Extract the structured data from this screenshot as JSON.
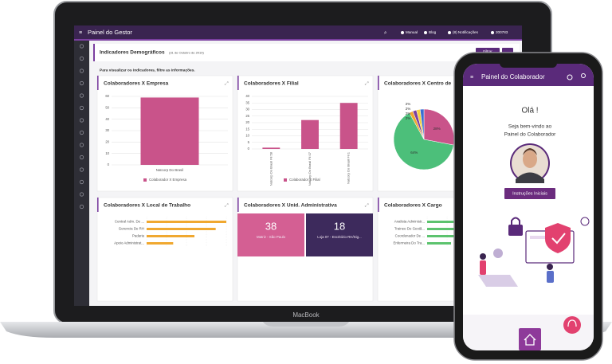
{
  "laptop": {
    "app_title": "Painel do Gestor",
    "menu": [
      "Manual",
      "Blog",
      "(8) Notificações",
      "200783"
    ],
    "page_title": "Indicadores Demográficos",
    "date": "(31 de Outubro de 2019)",
    "hint": "Para visualizar os indicadores, filtre as informações.",
    "filter_button": "Filtrar",
    "brand": "MacBook"
  },
  "chart_data": [
    {
      "type": "bar",
      "title": "Colaboradores X Empresa",
      "categories": [
        "Natcorp Do Brasil"
      ],
      "series": [
        {
          "name": "Colaborador X Empresa",
          "color": "#c9538a",
          "values": [
            59
          ]
        }
      ],
      "ylim": [
        0,
        60
      ],
      "yticks": [
        0,
        10,
        20,
        30,
        40,
        50,
        60
      ],
      "grid": true
    },
    {
      "type": "bar",
      "title": "Colaboradores X Filial",
      "categories": [
        "Natcorp Do Brasil Fil 58",
        "Natcorp Do Brasil Fil 07",
        "Natcorp Do Brasil Fil 1"
      ],
      "series": [
        {
          "name": "Colaborador X Filial",
          "color": "#c9538a",
          "values": [
            1,
            22,
            35
          ]
        }
      ],
      "ylim": [
        0,
        40
      ],
      "yticks": [
        0,
        5,
        10,
        15,
        20,
        25,
        30,
        35,
        40
      ],
      "grid": true,
      "rotate_labels": true
    },
    {
      "type": "pie",
      "title": "Colaboradores X Centro de",
      "values": [
        28,
        64,
        2,
        2,
        2,
        2
      ],
      "value_labels": [
        "28%",
        "64%",
        "2%",
        "2%",
        "2%",
        "2%"
      ],
      "colors": [
        "#c9538a",
        "#4cbf7a",
        "#f0a830",
        "#7b3fa0",
        "#f5d142",
        "#3a6fd1"
      ]
    },
    {
      "type": "hbar",
      "title": "Colaboradores X Local de Trabalho",
      "categories": [
        "Central Adm. De ...",
        "Gerencia De RH",
        "Padaria",
        "Apoio Administrat..."
      ],
      "values": [
        30,
        26,
        18,
        10
      ],
      "color": "#f0a830"
    },
    {
      "type": "tiles",
      "title": "Colaboradores X Unid. Administrativa",
      "values": [
        38,
        18
      ],
      "categories": [
        "Matriz - São Paulo",
        "Loja 07 - Escritório RH/Sig..."
      ],
      "colors": [
        "#d45f93",
        "#3d2a5c"
      ]
    },
    {
      "type": "hbar",
      "title": "Colaboradores X Cargo",
      "categories": [
        "Analista Administr...",
        "Trainee De Gestã...",
        "Coordenador De ...",
        "Enfermeira Do Tra..."
      ],
      "values": [
        10,
        6,
        4,
        3
      ],
      "color": "#5cc36e"
    }
  ],
  "phone": {
    "app_title": "Painel do Colaborador",
    "greeting": "Olá !",
    "welcome": [
      "Seja bem-vindo ao",
      "Painel do Colaborador"
    ],
    "button": "Instruções Iniciais"
  }
}
